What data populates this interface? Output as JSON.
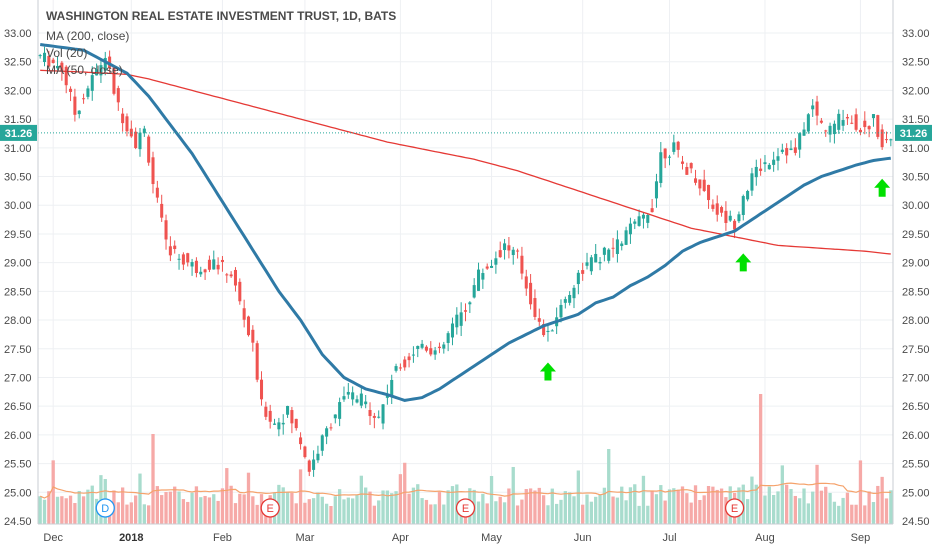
{
  "chart_data": {
    "type": "candlestick",
    "title": "WASHINGTON REAL ESTATE INVESTMENT TRUST, 1D, BATS",
    "legend": [
      "MA (200, close)",
      "Vol (20)",
      "MA (50, close)"
    ],
    "last_price": "31.26",
    "ylim": [
      24.5,
      33.0
    ],
    "yticks": [
      "33.00",
      "32.50",
      "32.00",
      "31.50",
      "31.00",
      "30.50",
      "30.00",
      "29.50",
      "29.00",
      "28.50",
      "28.00",
      "27.50",
      "27.00",
      "26.50",
      "26.00",
      "25.50",
      "25.00",
      "24.50"
    ],
    "x_labels": [
      {
        "label": "Dec",
        "i": 3,
        "bold": false
      },
      {
        "label": "2018",
        "i": 21,
        "bold": true
      },
      {
        "label": "Feb",
        "i": 42,
        "bold": false
      },
      {
        "label": "Mar",
        "i": 61,
        "bold": false
      },
      {
        "label": "Apr",
        "i": 83,
        "bold": false
      },
      {
        "label": "May",
        "i": 104,
        "bold": false
      },
      {
        "label": "Jun",
        "i": 125,
        "bold": false
      },
      {
        "label": "Jul",
        "i": 145,
        "bold": false
      },
      {
        "label": "Aug",
        "i": 167,
        "bold": false
      },
      {
        "label": "Sep",
        "i": 189,
        "bold": false
      }
    ],
    "events": [
      {
        "label": "D",
        "i": 15,
        "color": "#2196f3"
      },
      {
        "label": "E",
        "i": 53,
        "color": "#e53935"
      },
      {
        "label": "E",
        "i": 98,
        "color": "#e53935"
      },
      {
        "label": "E",
        "i": 160,
        "color": "#e53935"
      }
    ],
    "arrows": [
      {
        "i": 117,
        "price": 27.4
      },
      {
        "i": 162,
        "price": 29.3
      },
      {
        "i": 194,
        "price": 30.6
      }
    ],
    "colors": {
      "up": "#26a69a",
      "down": "#ef5350",
      "ma50": "#2f7aa6",
      "ma200": "#e53935",
      "vol_ma": "#f5a26b",
      "arrow": "#00e000",
      "price_tag": "#26a69a"
    },
    "anchors": [
      [
        0,
        32.6
      ],
      [
        5,
        32.4
      ],
      [
        8,
        31.6
      ],
      [
        12,
        32.2
      ],
      [
        15,
        32.6
      ],
      [
        18,
        31.7
      ],
      [
        22,
        31.1
      ],
      [
        24,
        31.3
      ],
      [
        26,
        30.4
      ],
      [
        29,
        29.3
      ],
      [
        32,
        29.1
      ],
      [
        36,
        28.9
      ],
      [
        40,
        29.0
      ],
      [
        44,
        28.8
      ],
      [
        46,
        28.3
      ],
      [
        49,
        27.5
      ],
      [
        51,
        26.5
      ],
      [
        54,
        26.2
      ],
      [
        57,
        26.4
      ],
      [
        60,
        25.9
      ],
      [
        62,
        25.4
      ],
      [
        65,
        25.9
      ],
      [
        68,
        26.4
      ],
      [
        71,
        26.7
      ],
      [
        74,
        26.6
      ],
      [
        78,
        26.3
      ],
      [
        81,
        27.0
      ],
      [
        84,
        27.3
      ],
      [
        88,
        27.6
      ],
      [
        92,
        27.4
      ],
      [
        95,
        27.9
      ],
      [
        98,
        28.2
      ],
      [
        101,
        28.8
      ],
      [
        104,
        29.0
      ],
      [
        107,
        29.3
      ],
      [
        110,
        29.1
      ],
      [
        112,
        28.6
      ],
      [
        115,
        27.9
      ],
      [
        117,
        27.7
      ],
      [
        119,
        28.1
      ],
      [
        122,
        28.5
      ],
      [
        125,
        28.9
      ],
      [
        129,
        29.1
      ],
      [
        133,
        29.3
      ],
      [
        136,
        29.6
      ],
      [
        138,
        29.7
      ],
      [
        141,
        30.0
      ],
      [
        143,
        30.9
      ],
      [
        146,
        31.0
      ],
      [
        148,
        30.7
      ],
      [
        151,
        30.5
      ],
      [
        154,
        30.1
      ],
      [
        157,
        29.8
      ],
      [
        160,
        29.7
      ],
      [
        162,
        30.2
      ],
      [
        165,
        30.6
      ],
      [
        168,
        30.8
      ],
      [
        171,
        31.0
      ],
      [
        174,
        30.9
      ],
      [
        176,
        31.4
      ],
      [
        178,
        31.7
      ],
      [
        180,
        31.4
      ],
      [
        182,
        31.3
      ],
      [
        185,
        31.6
      ],
      [
        188,
        31.4
      ],
      [
        190,
        31.3
      ],
      [
        192,
        31.5
      ],
      [
        194,
        31.1
      ],
      [
        196,
        31.2
      ]
    ],
    "ma50": [
      [
        0,
        32.8
      ],
      [
        10,
        32.7
      ],
      [
        20,
        32.3
      ],
      [
        25,
        31.9
      ],
      [
        30,
        31.4
      ],
      [
        35,
        30.9
      ],
      [
        40,
        30.3
      ],
      [
        45,
        29.7
      ],
      [
        50,
        29.1
      ],
      [
        55,
        28.5
      ],
      [
        60,
        28.0
      ],
      [
        65,
        27.4
      ],
      [
        70,
        27.0
      ],
      [
        75,
        26.8
      ],
      [
        80,
        26.7
      ],
      [
        84,
        26.6
      ],
      [
        88,
        26.65
      ],
      [
        92,
        26.8
      ],
      [
        96,
        27.0
      ],
      [
        100,
        27.2
      ],
      [
        104,
        27.4
      ],
      [
        108,
        27.6
      ],
      [
        112,
        27.75
      ],
      [
        116,
        27.9
      ],
      [
        120,
        28.0
      ],
      [
        124,
        28.1
      ],
      [
        128,
        28.3
      ],
      [
        132,
        28.4
      ],
      [
        136,
        28.6
      ],
      [
        140,
        28.75
      ],
      [
        144,
        28.95
      ],
      [
        148,
        29.2
      ],
      [
        152,
        29.35
      ],
      [
        156,
        29.45
      ],
      [
        160,
        29.55
      ],
      [
        164,
        29.75
      ],
      [
        168,
        29.95
      ],
      [
        172,
        30.15
      ],
      [
        176,
        30.35
      ],
      [
        180,
        30.5
      ],
      [
        184,
        30.6
      ],
      [
        188,
        30.7
      ],
      [
        192,
        30.78
      ],
      [
        196,
        30.82
      ]
    ],
    "ma200": [
      [
        0,
        32.35
      ],
      [
        10,
        32.32
      ],
      [
        20,
        32.28
      ],
      [
        25,
        32.2
      ],
      [
        30,
        32.1
      ],
      [
        40,
        31.9
      ],
      [
        50,
        31.7
      ],
      [
        60,
        31.5
      ],
      [
        70,
        31.3
      ],
      [
        80,
        31.1
      ],
      [
        90,
        30.95
      ],
      [
        100,
        30.8
      ],
      [
        110,
        30.6
      ],
      [
        120,
        30.35
      ],
      [
        130,
        30.1
      ],
      [
        140,
        29.85
      ],
      [
        150,
        29.6
      ],
      [
        160,
        29.45
      ],
      [
        170,
        29.3
      ],
      [
        180,
        29.25
      ],
      [
        190,
        29.2
      ],
      [
        196,
        29.15
      ]
    ]
  }
}
